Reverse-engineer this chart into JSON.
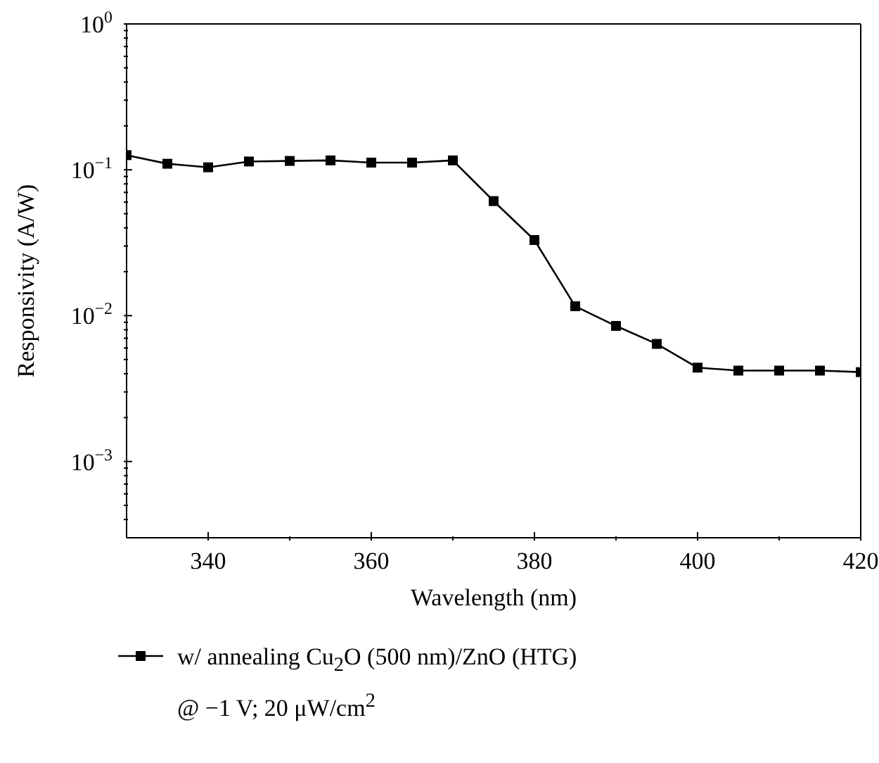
{
  "chart_data": {
    "type": "line",
    "xlabel": "Wavelength (nm)",
    "ylabel": "Responsivity (A/W)",
    "x": [
      330,
      335,
      340,
      345,
      350,
      355,
      360,
      365,
      370,
      375,
      380,
      385,
      390,
      395,
      400,
      405,
      410,
      415,
      420
    ],
    "series": [
      {
        "name": "w/ annealing Cu$_{2}$O (500 nm)/ZnO (HTG)\n@ −1 V; 20 μW/cm$^{2}$",
        "color": "#000000",
        "values": [
          0.126,
          0.11,
          0.104,
          0.114,
          0.115,
          0.116,
          0.112,
          0.112,
          0.116,
          0.061,
          0.033,
          0.0116,
          0.0085,
          0.0064,
          0.0044,
          0.0042,
          0.0042,
          0.0042,
          0.0041
        ]
      }
    ],
    "log": "y",
    "xlim": [
      330,
      420
    ],
    "ylim": [
      0.0003,
      1
    ],
    "xticks": [
      340,
      {
        "value": 350,
        "label": null
      },
      360,
      {
        "value": 370,
        "label": null
      },
      380,
      {
        "value": 390,
        "label": null
      },
      400,
      {
        "value": 410,
        "label": null
      },
      420
    ],
    "yticks": [
      {
        "value": 0.0004,
        "label": null
      },
      {
        "value": 0.0005,
        "label": null
      },
      {
        "value": 0.0006,
        "label": null
      },
      {
        "value": 0.0007,
        "label": null
      },
      {
        "value": 0.0008,
        "label": null
      },
      {
        "value": 0.0009,
        "label": null
      },
      {
        "value": 0.001,
        "label": "10$^{−3}$"
      },
      {
        "value": 0.002,
        "label": null
      },
      {
        "value": 0.003,
        "label": null
      },
      {
        "value": 0.004,
        "label": null
      },
      {
        "value": 0.005,
        "label": null
      },
      {
        "value": 0.006,
        "label": null
      },
      {
        "value": 0.007,
        "label": null
      },
      {
        "value": 0.008,
        "label": null
      },
      {
        "value": 0.009,
        "label": null
      },
      {
        "value": 0.01,
        "label": "10$^{−2}$"
      },
      {
        "value": 0.02,
        "label": null
      },
      {
        "value": 0.03,
        "label": null
      },
      {
        "value": 0.04,
        "label": null
      },
      {
        "value": 0.05,
        "label": null
      },
      {
        "value": 0.06,
        "label": null
      },
      {
        "value": 0.07,
        "label": null
      },
      {
        "value": 0.08,
        "label": null
      },
      {
        "value": 0.09,
        "label": null
      },
      {
        "value": 0.1,
        "label": "10$^{−1}$"
      },
      {
        "value": 0.2,
        "label": null
      },
      {
        "value": 0.3,
        "label": null
      },
      {
        "value": 0.4,
        "label": null
      },
      {
        "value": 0.5,
        "label": null
      },
      {
        "value": 0.6,
        "label": null
      },
      {
        "value": 0.7,
        "label": null
      },
      {
        "value": 0.8,
        "label": null
      },
      {
        "value": 0.9,
        "label": null
      },
      {
        "value": 1,
        "label": "10$^{0}$"
      }
    ],
    "grid": false,
    "legend": "bottom",
    "marker": "square",
    "line_style": "solid"
  }
}
